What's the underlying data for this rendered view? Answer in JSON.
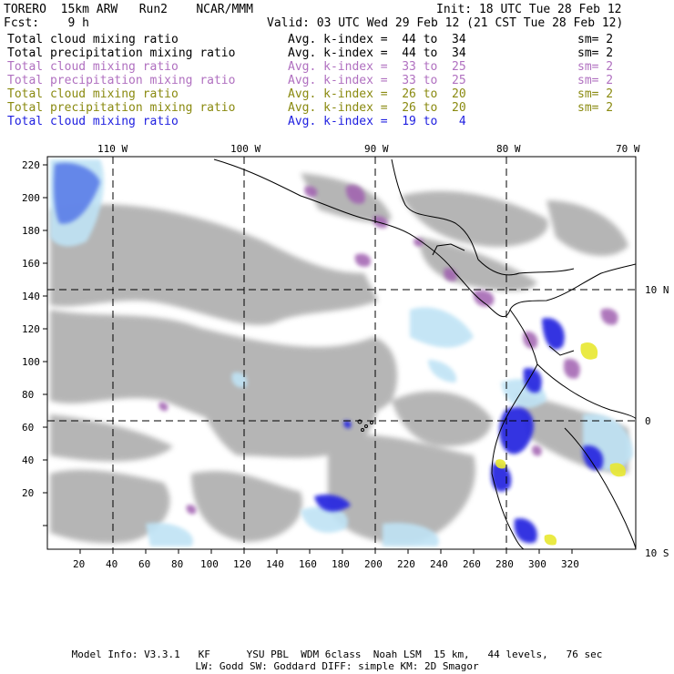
{
  "header": {
    "model": "TORERO  15km ARW   Run2    NCAR/MMM",
    "init": "Init: 18 UTC Tue 28 Feb 12",
    "fcst": "Fcst:    9 h",
    "valid": "Valid: 03 UTC Wed 29 Feb 12 (21 CST Tue 28 Feb 12)"
  },
  "legend": [
    {
      "label": "Total cloud mixing ratio",
      "kindex": "Avg. k-index =  44 to  34",
      "sm": "sm= 2",
      "color": "#000000"
    },
    {
      "label": "Total precipitation mixing ratio",
      "kindex": "Avg. k-index =  44 to  34",
      "sm": "sm= 2",
      "color": "#000000"
    },
    {
      "label": "Total cloud mixing ratio",
      "kindex": "Avg. k-index =  33 to  25",
      "sm": "sm= 2",
      "color": "#b070c0"
    },
    {
      "label": "Total precipitation mixing ratio",
      "kindex": "Avg. k-index =  33 to  25",
      "sm": "sm= 2",
      "color": "#b070c0"
    },
    {
      "label": "Total cloud mixing ratio",
      "kindex": "Avg. k-index =  26 to  20",
      "sm": "sm= 2",
      "color": "#8a8a10"
    },
    {
      "label": "Total precipitation mixing ratio",
      "kindex": "Avg. k-index =  26 to  20",
      "sm": "sm= 2",
      "color": "#8a8a10"
    },
    {
      "label": "Total cloud mixing ratio",
      "kindex": "Avg. k-index =  19 to   4",
      "sm": "",
      "color": "#2020e0"
    }
  ],
  "axes": {
    "top_lon": [
      "110 W",
      "100 W",
      "90 W",
      "80 W",
      "70 W"
    ],
    "right_lat": [
      "10 N",
      "0",
      "10 S"
    ],
    "left_y": [
      "220",
      "200",
      "180",
      "160",
      "140",
      "120",
      "100",
      "80",
      "60",
      "40",
      "20"
    ],
    "bottom_x": [
      "20",
      "40",
      "60",
      "80",
      "100",
      "120",
      "140",
      "160",
      "180",
      "200",
      "220",
      "240",
      "260",
      "280",
      "300",
      "320"
    ]
  },
  "footer": {
    "line1": "Model Info: V3.3.1   KF      YSU PBL  WDM 6class  Noah LSM  15 km,   44 levels,   76 sec",
    "line2": "LW: Godd SW: Goddard DIFF: simple KM: 2D Smagor"
  }
}
